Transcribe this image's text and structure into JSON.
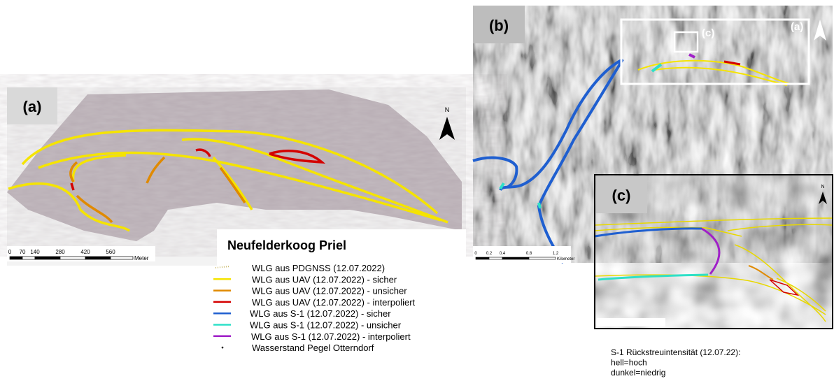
{
  "panel_a": {
    "label": "(a)",
    "north": "N",
    "scale": {
      "ticks": [
        "0",
        "70",
        "140",
        "280",
        "420",
        "560"
      ],
      "unit": "Meter"
    }
  },
  "legend": {
    "title": "Neufelderkoog Priel",
    "items": [
      {
        "label": "WLG aus PDGNSS (12.07.2022)",
        "color": "#c9b96a"
      },
      {
        "label": "WLG aus UAV (12.07.2022) - sicher",
        "color": "#f5e400"
      },
      {
        "label": "WLG aus UAV (12.07.2022) - unsicher",
        "color": "#e08a00"
      },
      {
        "label": "WLG aus UAV (12.07.2022) - interpoliert",
        "color": "#d40000"
      },
      {
        "label": "WLG aus S-1   (12.07.2022) - sicher",
        "color": "#1f5fd0"
      },
      {
        "label": "WLG aus S-1   (12.07.2022) - unsicher",
        "color": "#2fe0c8"
      },
      {
        "label": "WLG aus S-1   (12.07.2022) - interpoliert",
        "color": "#a020c8"
      },
      {
        "label": "Wasserstand Pegel Otterndorf",
        "color": "#000000"
      }
    ]
  },
  "panel_b": {
    "label": "(b)",
    "inset_c": "(c)",
    "inset_a": "(a)",
    "scale": {
      "ticks": [
        "0",
        "0.2",
        "0.4",
        "0.8",
        "1.2"
      ],
      "unit": "Kilometer"
    }
  },
  "panel_c": {
    "label": "(c)",
    "north": "N"
  },
  "caption": [
    "S-1 Rückstreuintensität (12.07.22):",
    "hell=hoch",
    "dunkel=niedrig"
  ]
}
